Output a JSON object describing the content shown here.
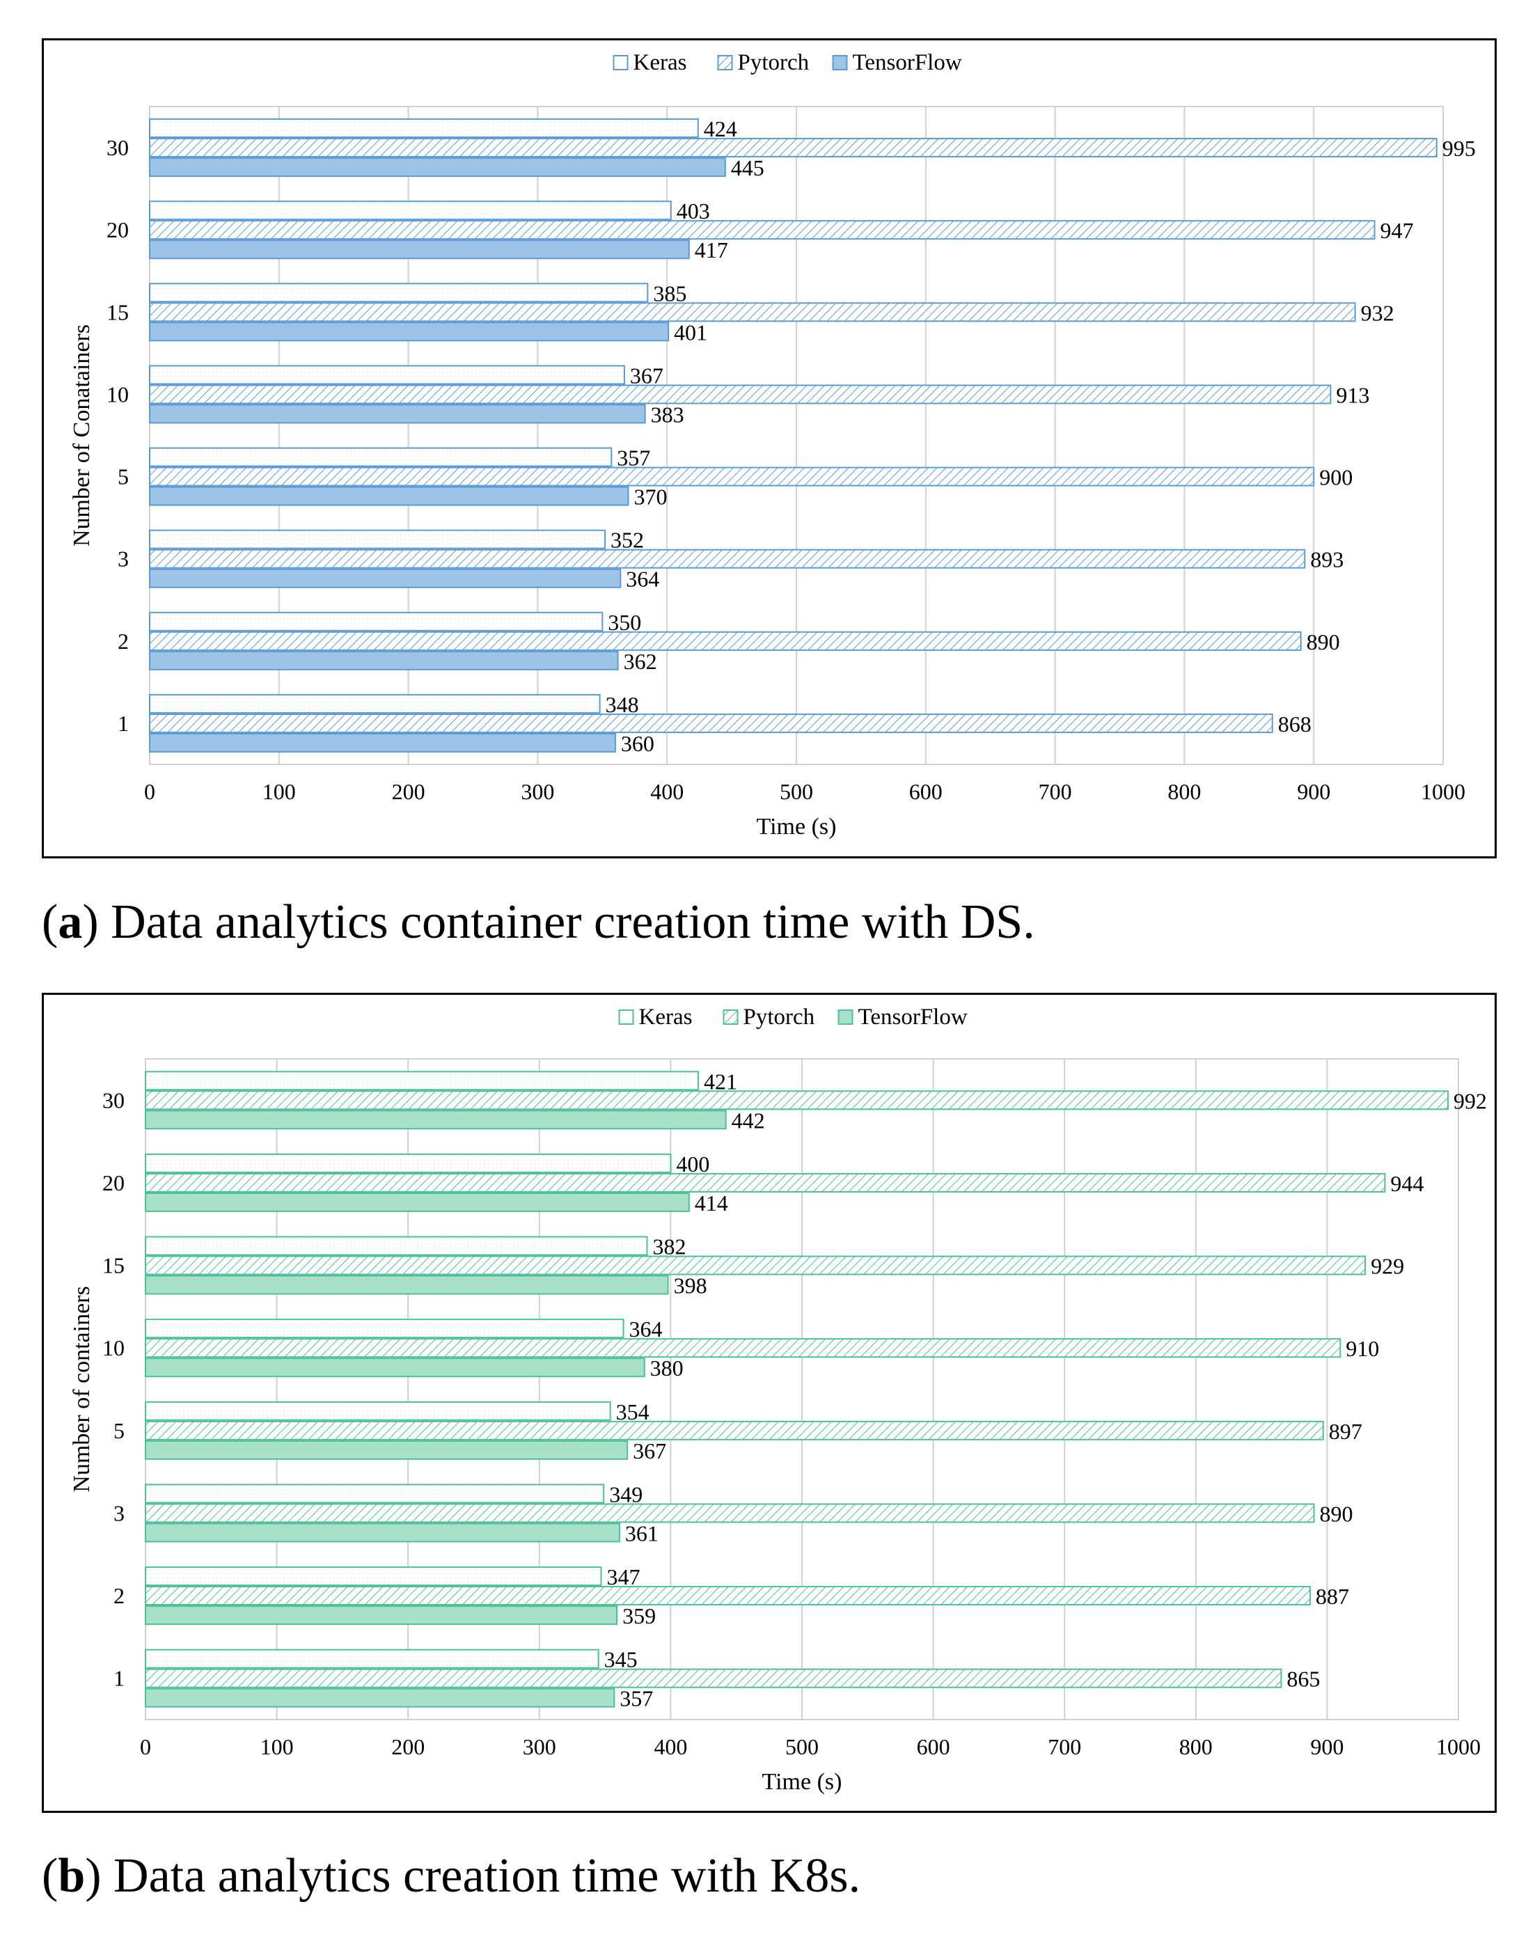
{
  "panels": [
    {
      "caption_letter": "a",
      "caption_rest": ") Data analytics container creation time with DS.",
      "colors": {
        "stroke": "#5b9bd5",
        "fill": "#9dc3e6",
        "light": "#deebf7"
      }
    },
    {
      "caption_letter": "b",
      "caption_rest": ") Data analytics creation time with K8s.",
      "colors": {
        "stroke": "#4dbf99",
        "fill": "#a8e0c8",
        "light": "#d9f2e8"
      }
    }
  ],
  "chart_data": [
    {
      "type": "bar",
      "orientation": "horizontal",
      "categories": [
        "1",
        "2",
        "3",
        "5",
        "10",
        "15",
        "20",
        "30"
      ],
      "series": [
        {
          "name": "Keras",
          "values": [
            348,
            350,
            352,
            357,
            367,
            385,
            403,
            424
          ]
        },
        {
          "name": "Pytorch",
          "values": [
            868,
            890,
            893,
            900,
            913,
            932,
            947,
            995
          ]
        },
        {
          "name": "TensorFlow",
          "values": [
            360,
            362,
            364,
            370,
            383,
            401,
            417,
            445
          ]
        }
      ],
      "xlabel": "Time (s)",
      "ylabel": "Number of Conatainers",
      "xlim": [
        0,
        1000
      ],
      "xticks": [
        "0",
        "100",
        "200",
        "300",
        "400",
        "500",
        "600",
        "700",
        "800",
        "900",
        "1000"
      ],
      "grid": true,
      "legend": "top"
    },
    {
      "type": "bar",
      "orientation": "horizontal",
      "categories": [
        "1",
        "2",
        "3",
        "5",
        "10",
        "15",
        "20",
        "30"
      ],
      "series": [
        {
          "name": "Keras",
          "values": [
            345,
            347,
            349,
            354,
            364,
            382,
            400,
            421
          ]
        },
        {
          "name": "Pytorch",
          "values": [
            865,
            887,
            890,
            897,
            910,
            929,
            944,
            992
          ]
        },
        {
          "name": "TensorFlow",
          "values": [
            357,
            359,
            361,
            367,
            380,
            398,
            414,
            442
          ]
        }
      ],
      "xlabel": "Time (s)",
      "ylabel": "Number of containers",
      "xlim": [
        0,
        1000
      ],
      "xticks": [
        "0",
        "100",
        "200",
        "300",
        "400",
        "500",
        "600",
        "700",
        "800",
        "900",
        "1000"
      ],
      "grid": true,
      "legend": "top"
    }
  ]
}
